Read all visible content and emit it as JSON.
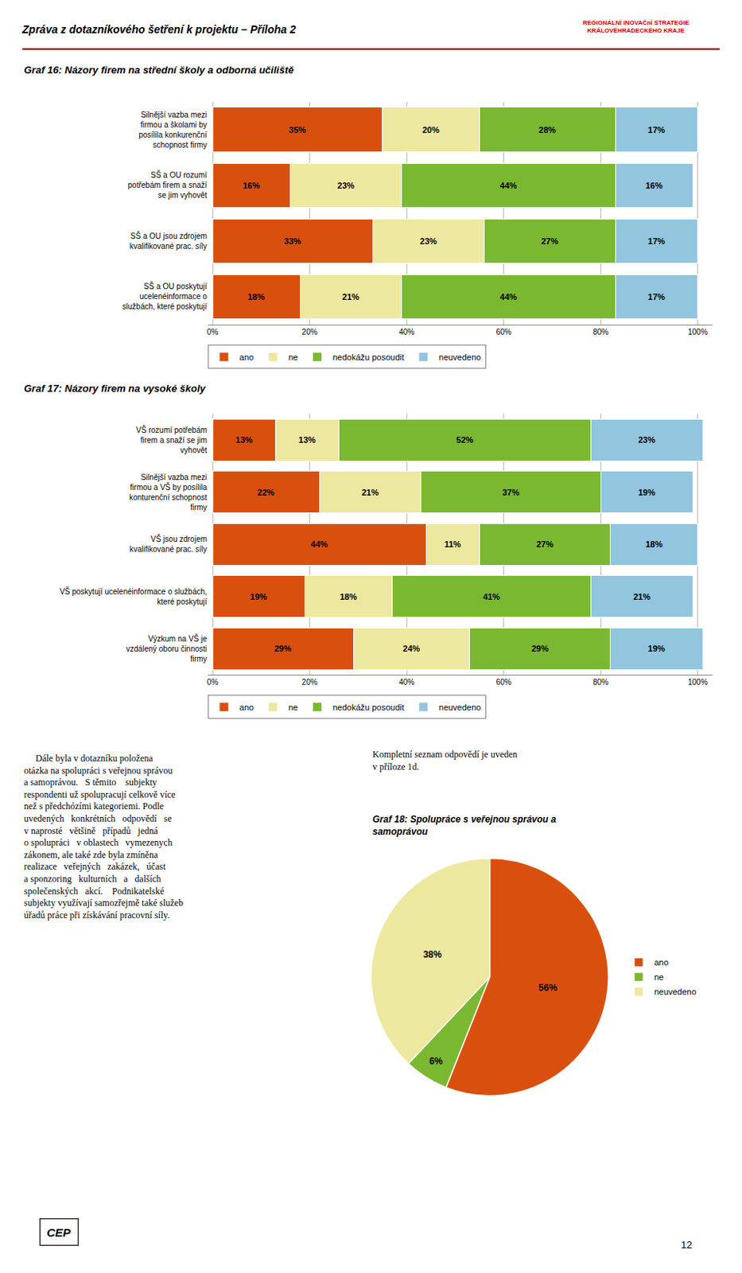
{
  "title": "Zpráva z dotazníkového šetření k projektu – Příloha 2",
  "annotations": [
    "REGIONÁLNÍ INOVAČnÍ STRATEGIE\nKRÁLOVÉHRADECKÉHO KRAJE",
    "     Dále byla v dotazníku položena\notázka na spolupráci s veřejnou správou\na samoprávou.   S těmito    subjekty\nrespondenti už spolupracují celkově více\nnež s předchózími kategoriemi. Podle\nuvedených   konkrétních   odpovědí   se\nv naprosté   většině   případů   jedná\no spolupráci   v oblastech   vymezenych\nzákonem, ale také zde byla zmíněna\nrealizace   veřejných   zakázek,   účast\na sponzoring   kulturních   a   dalších\nspolečenských   akcí.    Podnikatelské\nsubjekty využívají samozřejmě také služeb\núřadů práce při získávání pracovní síly.",
    "Kompletní seznam odpovědí je uveden\nv příloze 1d.",
    "CEP",
    "12"
  ],
  "chart_data": [
    {
      "type": "bar",
      "title": "Graf 16: Názory firem na střední školy a odborná učiliště",
      "orientation": "horizontal",
      "stacked": true,
      "categories": [
        "Silnější vazba mezi\nfirmou a školami by\nposílila konkurenční\nschopnost firmy",
        "SŠ a OU rozumí\npotřebám firem a snaží\nse jim vyhovět",
        "SŠ a OU jsou zdrojem\nkvalifikované prac. síly",
        "SŠ a OU poskytují\nucelenéinformace o\nslužbách, které poskytují"
      ],
      "series": [
        {
          "name": "ano",
          "color": "#D9500E",
          "values": [
            35,
            16,
            33,
            18
          ],
          "value_labels": [
            "35%",
            "16%",
            "33%",
            "18%"
          ]
        },
        {
          "name": "ne",
          "color": "#EDE8A0",
          "values": [
            20,
            23,
            23,
            21
          ],
          "value_labels": [
            "20%",
            "23%",
            "23%",
            "21%"
          ]
        },
        {
          "name": "nedokážu posoudit",
          "color": "#7BB832",
          "values": [
            28,
            44,
            27,
            44
          ],
          "value_labels": [
            "28%",
            "44%",
            "27%",
            "44%"
          ]
        },
        {
          "name": "neuvedeno",
          "color": "#92C5DE",
          "values": [
            17,
            16,
            17,
            17
          ],
          "value_labels": [
            "17%",
            "16%",
            "17%",
            "17%"
          ]
        }
      ],
      "xlim": [
        -1,
        103
      ],
      "xticks": [
        {
          "value": 0,
          "label": "0%"
        },
        {
          "value": 20,
          "label": "20%"
        },
        {
          "value": 40,
          "label": "40%"
        },
        {
          "value": 60,
          "label": "60%"
        },
        {
          "value": 80,
          "label": "80%"
        },
        {
          "value": 100,
          "label": "100%"
        }
      ],
      "grid": true,
      "legend": "bottom",
      "data_labels": true
    },
    {
      "type": "bar",
      "title": "Graf 17: Názory firem na vysoké školy",
      "orientation": "horizontal",
      "stacked": true,
      "categories": [
        "VŠ rozumí potřebám\nfirem a snaží se jim\nvyhovět",
        "Silnější vazba mezi\nfirmou a VŠ by posílila\nkonturenční schopnost\nfirmy",
        "VŠ jsou zdrojem\nkvalifikované prac. síly",
        "VŠ poskytují ucelenéinformace o službách,\nkteré poskytují",
        "Výzkum na VŠ je\nvzdálený oboru činnosti\nfirmy"
      ],
      "series": [
        {
          "name": "ano",
          "color": "#D9500E",
          "values": [
            13,
            22,
            44,
            19,
            29
          ],
          "value_labels": [
            "13%",
            "22%",
            "44%",
            "19%",
            "29%"
          ]
        },
        {
          "name": "ne",
          "color": "#EDE8A0",
          "values": [
            13,
            21,
            11,
            18,
            24
          ],
          "value_labels": [
            "13%",
            "21%",
            "11%",
            "18%",
            "24%"
          ]
        },
        {
          "name": "nedokážu posoudit",
          "color": "#7BB832",
          "values": [
            52,
            37,
            27,
            41,
            29
          ],
          "value_labels": [
            "52%",
            "37%",
            "27%",
            "41%",
            "29%"
          ]
        },
        {
          "name": "neuvedeno",
          "color": "#92C5DE",
          "values": [
            23,
            19,
            18,
            21,
            19
          ],
          "value_labels": [
            "23%",
            "19%",
            "18%",
            "21%",
            "19%"
          ]
        }
      ],
      "xlim": [
        -1,
        103
      ],
      "xticks": [
        {
          "value": 0,
          "label": "0%"
        },
        {
          "value": 20,
          "label": "20%"
        },
        {
          "value": 40,
          "label": "40%"
        },
        {
          "value": 60,
          "label": "60%"
        },
        {
          "value": 80,
          "label": "80%"
        },
        {
          "value": 100,
          "label": "100%"
        }
      ],
      "grid": true,
      "legend": "bottom",
      "data_labels": true
    },
    {
      "type": "pie",
      "title": "Graf 18: Spolupráce s veřejnou správou a\nsamoprávou",
      "categories": [
        "ano",
        "ne",
        "neuvedeno"
      ],
      "values": [
        56,
        6,
        38
      ],
      "value_labels": [
        "56%",
        "6%",
        "38%"
      ],
      "colors": [
        "#D9500E",
        "#7BB832",
        "#EDE8A0"
      ],
      "data_labels": true,
      "legend": "right"
    }
  ]
}
